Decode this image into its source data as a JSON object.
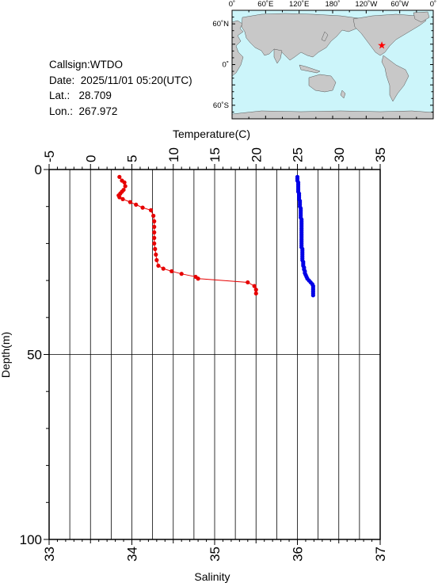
{
  "info": {
    "callsign_label": "Callsign:",
    "callsign": "WTDO",
    "date_label": "Date:",
    "date": "2025/11/01 05:20(UTC)",
    "lat_label": "Lat.:",
    "lat": "28.709",
    "lon_label": "Lon.:",
    "lon": "267.972"
  },
  "map": {
    "top_labels": [
      "0˚",
      "60˚E",
      "120˚E",
      "180˚",
      "120˚W",
      "60˚W",
      "0˚"
    ],
    "left_labels": [
      "60˚N",
      "0˚",
      "60˚S"
    ],
    "ocean_color": "#ccf5fa",
    "land_color": "#c8c8c8",
    "marker_color": "#ff0000",
    "marker_lat": 28.709,
    "marker_lon": 267.972
  },
  "chart_data": {
    "type": "scatter",
    "title": "",
    "top_axis": {
      "label": "Temperature(C)",
      "range": [
        -5,
        35
      ],
      "ticks": [
        -5,
        0,
        5,
        10,
        15,
        20,
        25,
        30,
        35
      ],
      "tick_labels": [
        "-5",
        "0",
        "5",
        "10",
        "15",
        "20",
        "25",
        "30",
        "35"
      ]
    },
    "bottom_axis": {
      "label": "Salinity",
      "range": [
        33,
        37
      ],
      "ticks": [
        33,
        34,
        35,
        36,
        37
      ],
      "tick_labels": [
        "33",
        "34",
        "35",
        "36",
        "37"
      ]
    },
    "y_axis": {
      "label": "Depth(m)",
      "range": [
        0,
        100
      ],
      "inverted": true,
      "ticks": [
        0,
        50,
        100
      ],
      "tick_labels": [
        "0",
        "50",
        "100"
      ]
    },
    "grid": true,
    "series": [
      {
        "axis": "temperature",
        "color": "#e60000",
        "points": [
          [
            3.5,
            2
          ],
          [
            3.8,
            3
          ],
          [
            4.1,
            3.5
          ],
          [
            4.2,
            4.5
          ],
          [
            4.0,
            5.5
          ],
          [
            3.8,
            6
          ],
          [
            3.6,
            6.5
          ],
          [
            3.4,
            7
          ],
          [
            3.5,
            7.5
          ],
          [
            3.9,
            8
          ],
          [
            4.8,
            8.8
          ],
          [
            5.5,
            9.5
          ],
          [
            6.3,
            10.3
          ],
          [
            7.3,
            11
          ],
          [
            7.6,
            12.5
          ],
          [
            7.7,
            14
          ],
          [
            7.7,
            15.5
          ],
          [
            7.7,
            17
          ],
          [
            7.7,
            18.5
          ],
          [
            7.7,
            20
          ],
          [
            7.8,
            21.5
          ],
          [
            7.9,
            23
          ],
          [
            8.0,
            24.5
          ],
          [
            8.2,
            26
          ],
          [
            8.8,
            26.8
          ],
          [
            9.8,
            27.5
          ],
          [
            11.0,
            28.2
          ],
          [
            12.7,
            29
          ],
          [
            13.0,
            29.5
          ],
          [
            19.0,
            30.5
          ],
          [
            19.8,
            31.5
          ],
          [
            20.0,
            32.5
          ],
          [
            20.0,
            33.5
          ]
        ]
      },
      {
        "axis": "salinity",
        "color": "#0000e6",
        "points": [
          [
            36.0,
            2
          ],
          [
            36.0,
            2.5
          ],
          [
            36.0,
            3
          ],
          [
            36.01,
            3.5
          ],
          [
            36.01,
            4
          ],
          [
            36.01,
            4.5
          ],
          [
            36.01,
            5
          ],
          [
            36.01,
            5.5
          ],
          [
            36.01,
            6
          ],
          [
            36.02,
            6.5
          ],
          [
            36.02,
            7
          ],
          [
            36.02,
            7.5
          ],
          [
            36.02,
            8
          ],
          [
            36.03,
            8.5
          ],
          [
            36.03,
            9
          ],
          [
            36.03,
            9.5
          ],
          [
            36.03,
            10
          ],
          [
            36.04,
            10.5
          ],
          [
            36.04,
            11
          ],
          [
            36.04,
            11.5
          ],
          [
            36.04,
            12
          ],
          [
            36.04,
            12.5
          ],
          [
            36.04,
            13
          ],
          [
            36.05,
            13.5
          ],
          [
            36.05,
            14
          ],
          [
            36.05,
            14.5
          ],
          [
            36.05,
            15
          ],
          [
            36.05,
            15.5
          ],
          [
            36.05,
            16
          ],
          [
            36.05,
            16.5
          ],
          [
            36.05,
            17
          ],
          [
            36.05,
            17.5
          ],
          [
            36.05,
            18
          ],
          [
            36.05,
            18.5
          ],
          [
            36.05,
            19
          ],
          [
            36.05,
            19.5
          ],
          [
            36.05,
            20
          ],
          [
            36.05,
            20.5
          ],
          [
            36.05,
            21
          ],
          [
            36.06,
            21.5
          ],
          [
            36.06,
            22
          ],
          [
            36.06,
            22.5
          ],
          [
            36.06,
            23
          ],
          [
            36.06,
            23.5
          ],
          [
            36.06,
            24
          ],
          [
            36.06,
            24.5
          ],
          [
            36.07,
            25
          ],
          [
            36.07,
            25.5
          ],
          [
            36.07,
            26
          ],
          [
            36.08,
            26.5
          ],
          [
            36.08,
            27
          ],
          [
            36.09,
            27.5
          ],
          [
            36.09,
            28
          ],
          [
            36.1,
            28.5
          ],
          [
            36.11,
            29
          ],
          [
            36.12,
            29.5
          ],
          [
            36.14,
            30
          ],
          [
            36.16,
            30.5
          ],
          [
            36.18,
            31
          ],
          [
            36.19,
            31.5
          ],
          [
            36.19,
            32
          ],
          [
            36.19,
            32.5
          ],
          [
            36.19,
            33
          ],
          [
            36.19,
            33.5
          ],
          [
            36.19,
            34
          ]
        ]
      }
    ]
  }
}
